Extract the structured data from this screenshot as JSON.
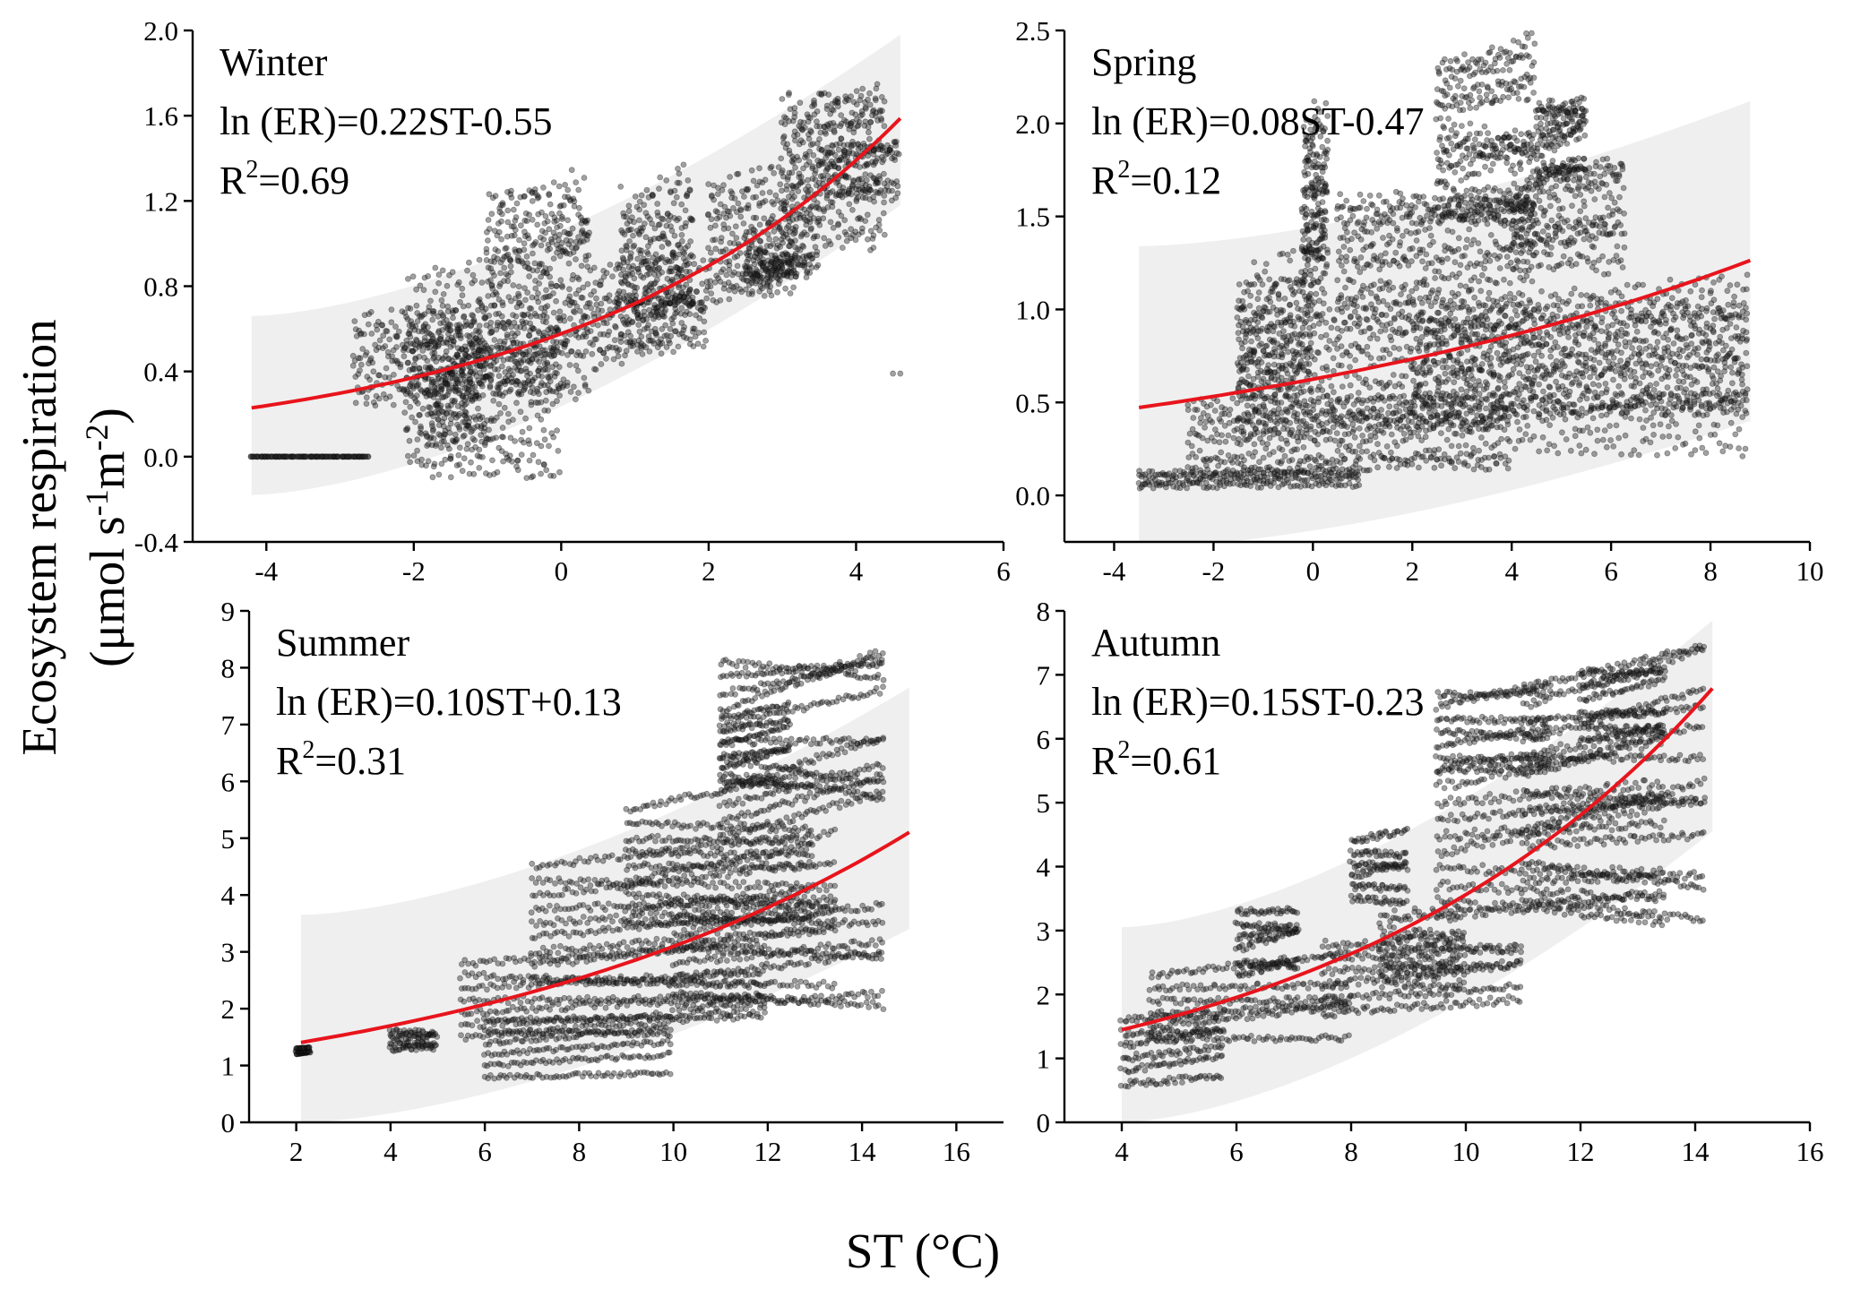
{
  "figure": {
    "xlabel": "ST (°C)",
    "ylabel_line1": "Ecosystem respiration",
    "ylabel_line2_prefix": "(μmol s",
    "ylabel_sup1": "-1",
    "ylabel_mid": "m",
    "ylabel_sup2": "-2",
    "ylabel_suffix": ")",
    "colors": {
      "points": "#333333",
      "fit": "#e8141c",
      "band": "#efefef"
    }
  },
  "chart_data": [
    {
      "type": "scatter",
      "season": "Winter",
      "equation": "ln (ER)=0.22ST-0.55",
      "r2_prefix": "R",
      "r2_sup": "2",
      "r2_value": "=0.69",
      "xlim": [
        -5,
        6
      ],
      "ylim": [
        -0.4,
        2.0
      ],
      "xticks": [
        -4,
        -2,
        0,
        2,
        4,
        6
      ],
      "yticks": [
        -0.4,
        0.0,
        0.4,
        0.8,
        1.2,
        1.6,
        2.0
      ],
      "ytick_labels": [
        "-0.4",
        "0.0",
        "0.4",
        "0.8",
        "1.2",
        "1.6",
        "2.0"
      ],
      "fit": {
        "a": 0.22,
        "b": -0.55,
        "x_range": [
          -4.2,
          4.6
        ]
      },
      "band": {
        "x": [
          -4.2,
          4.6
        ],
        "lower": [
          -0.18,
          1.18
        ],
        "upper": [
          0.66,
          1.98
        ]
      },
      "clusters": [
        [
          -4.2,
          -2.6,
          0.0,
          0.0,
          0.0
        ],
        [
          -2.8,
          0.4,
          0.28,
          0.62,
          0.12
        ],
        [
          -2.1,
          -1.0,
          0.05,
          0.7,
          0.3
        ],
        [
          -1.8,
          0.0,
          0.0,
          0.45,
          0.2
        ],
        [
          -1.0,
          0.4,
          0.6,
          1.2,
          0.3
        ],
        [
          0.4,
          2.0,
          0.45,
          0.85,
          0.1
        ],
        [
          0.8,
          1.8,
          0.6,
          1.15,
          0.25
        ],
        [
          2.0,
          3.5,
          0.75,
          1.25,
          0.1
        ],
        [
          2.5,
          3.2,
          0.8,
          1.0,
          0.15
        ],
        [
          3.0,
          4.4,
          1.05,
          1.65,
          0.15
        ],
        [
          3.5,
          4.6,
          1.25,
          1.45,
          0.05
        ]
      ],
      "extra_points": [
        [
          4.5,
          0.39
        ],
        [
          4.6,
          0.39
        ]
      ]
    },
    {
      "type": "scatter",
      "season": "Spring",
      "equation": "ln (ER)=0.08ST-0.47",
      "r2_prefix": "R",
      "r2_sup": "2",
      "r2_value": "=0.12",
      "xlim": [
        -5,
        10
      ],
      "ylim": [
        -0.25,
        2.5
      ],
      "xticks": [
        -4,
        -2,
        0,
        2,
        4,
        6,
        8,
        10
      ],
      "yticks": [
        0.0,
        0.5,
        1.0,
        1.5,
        2.0,
        2.5
      ],
      "ytick_labels": [
        "0.0",
        "0.5",
        "1.0",
        "1.5",
        "2.0",
        "2.5"
      ],
      "fit": {
        "a": 0.08,
        "b": -0.47,
        "x_range": [
          -3.5,
          8.8
        ]
      },
      "band": {
        "x": [
          -3.5,
          8.8
        ],
        "lower": [
          -0.28,
          0.4
        ],
        "upper": [
          1.34,
          2.12
        ]
      },
      "clusters": [
        [
          -3.5,
          1.0,
          0.05,
          0.12,
          0.03
        ],
        [
          -2.5,
          4.0,
          0.15,
          0.5,
          0.08
        ],
        [
          -1.5,
          8.8,
          0.3,
          0.95,
          0.12
        ],
        [
          2.0,
          8.8,
          0.45,
          0.95,
          0.18
        ],
        [
          -1.5,
          0.0,
          0.5,
          1.1,
          0.25
        ],
        [
          -0.2,
          0.3,
          1.1,
          1.9,
          0.4
        ],
        [
          0.5,
          4.5,
          0.95,
          1.6,
          0.12
        ],
        [
          2.5,
          4.5,
          1.55,
          2.3,
          0.12
        ],
        [
          4.0,
          6.3,
          1.25,
          1.7,
          0.12
        ],
        [
          4.5,
          5.5,
          1.7,
          2.1,
          0.08
        ]
      ],
      "extra_points": []
    },
    {
      "type": "scatter",
      "season": "Summer",
      "equation": "ln (ER)=0.10ST+0.13",
      "r2_prefix": "R",
      "r2_sup": "2",
      "r2_value": "=0.31",
      "xlim": [
        1,
        17
      ],
      "ylim": [
        0,
        9
      ],
      "xticks": [
        2,
        4,
        6,
        8,
        10,
        12,
        14,
        16
      ],
      "yticks": [
        0,
        1,
        2,
        3,
        4,
        5,
        6,
        7,
        8,
        9
      ],
      "ytick_labels": [
        "0",
        "1",
        "2",
        "3",
        "4",
        "5",
        "6",
        "7",
        "8",
        "9"
      ],
      "fit": {
        "a": 0.1,
        "b": 0.13,
        "x_range": [
          2.1,
          15.0
        ]
      },
      "band": {
        "x": [
          2.1,
          15.0
        ],
        "lower": [
          0.0,
          3.4
        ],
        "upper": [
          3.65,
          7.65
        ]
      },
      "clusters": [
        [
          2.0,
          2.3,
          1.2,
          1.3,
          0.0
        ],
        [
          4.0,
          5.0,
          1.3,
          1.6,
          0.1
        ],
        [
          6.0,
          10.0,
          0.8,
          1.8,
          0.08
        ],
        [
          5.5,
          12.0,
          1.5,
          2.8,
          0.12
        ],
        [
          7.0,
          13.5,
          2.5,
          4.5,
          0.12
        ],
        [
          10.0,
          14.5,
          2.0,
          3.6,
          0.12
        ],
        [
          9.0,
          13.0,
          3.5,
          5.5,
          0.12
        ],
        [
          11.0,
          14.5,
          5.0,
          8.1,
          0.12
        ],
        [
          11.0,
          12.5,
          6.0,
          7.1,
          0.08
        ]
      ],
      "extra_points": []
    },
    {
      "type": "scatter",
      "season": "Autumn",
      "equation": "ln (ER)=0.15ST-0.23",
      "r2_prefix": "R",
      "r2_sup": "2",
      "r2_value": "=0.61",
      "xlim": [
        3,
        16
      ],
      "ylim": [
        0,
        8
      ],
      "xticks": [
        4,
        6,
        8,
        10,
        12,
        14,
        16
      ],
      "yticks": [
        0,
        1,
        2,
        3,
        4,
        5,
        6,
        7,
        8
      ],
      "ytick_labels": [
        "0",
        "1",
        "2",
        "3",
        "4",
        "5",
        "6",
        "7",
        "8"
      ],
      "fit": {
        "a": 0.15,
        "b": -0.23,
        "x_range": [
          4.0,
          14.3
        ]
      },
      "band": {
        "x": [
          4.0,
          14.3
        ],
        "lower": [
          0.0,
          4.55
        ],
        "upper": [
          3.05,
          7.85
        ]
      },
      "clusters": [
        [
          4.0,
          5.8,
          0.6,
          1.6,
          0.1
        ],
        [
          4.5,
          8.0,
          1.3,
          2.3,
          0.1
        ],
        [
          6.0,
          7.1,
          2.3,
          3.3,
          0.1
        ],
        [
          7.5,
          11.0,
          1.7,
          2.8,
          0.12
        ],
        [
          8.5,
          10.0,
          2.2,
          3.2,
          0.2
        ],
        [
          9.5,
          13.5,
          3.2,
          5.5,
          0.15
        ],
        [
          11.0,
          14.2,
          3.5,
          6.8,
          0.12
        ],
        [
          9.5,
          11.5,
          5.5,
          6.7,
          0.1
        ],
        [
          12.0,
          13.5,
          6.0,
          7.0,
          0.1
        ],
        [
          8.0,
          9.0,
          3.5,
          4.4,
          0.1
        ]
      ],
      "extra_points": []
    }
  ]
}
